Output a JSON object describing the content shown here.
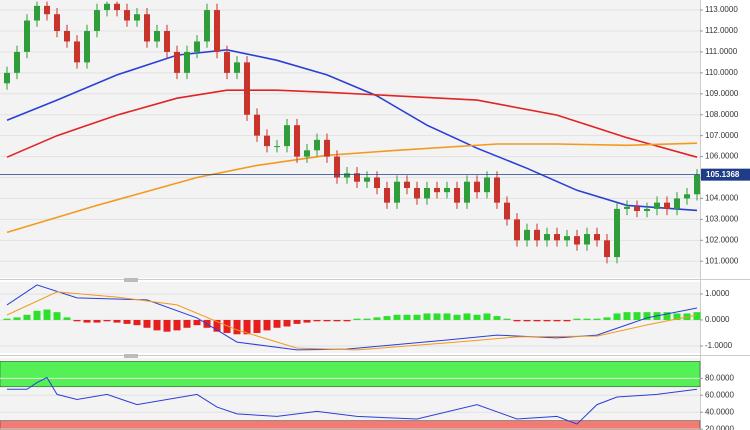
{
  "chart_data": [
    {
      "type": "candlestick",
      "open": [
        109.5,
        110.0,
        111.0,
        112.5,
        113.2,
        112.8,
        112.0,
        111.5,
        110.5,
        112.0,
        113.0,
        113.3,
        113.0,
        112.5,
        112.8,
        111.5,
        112.0,
        111.0,
        110.0,
        111.0,
        111.5,
        113.0,
        111.0,
        110.0,
        110.5,
        108.0,
        107.0,
        106.5,
        106.5,
        107.5,
        106.0,
        106.3,
        106.8,
        106.0,
        105.0,
        105.2,
        104.8,
        105.0,
        104.5,
        103.8,
        104.8,
        104.5,
        104.0,
        104.5,
        104.3,
        104.5,
        103.8,
        104.8,
        104.3,
        105.0,
        103.8,
        103.0,
        102.0,
        102.5,
        102.0,
        102.3,
        102.0,
        102.2,
        101.8,
        102.3,
        102.0,
        101.2,
        103.5,
        103.6,
        103.4,
        103.5,
        103.8,
        103.5,
        104.0,
        104.2
      ],
      "high": [
        110.3,
        111.3,
        112.8,
        113.4,
        113.4,
        113.1,
        112.3,
        111.8,
        112.3,
        113.3,
        113.4,
        113.4,
        113.3,
        113.1,
        113.1,
        112.3,
        112.3,
        111.3,
        111.3,
        111.8,
        113.3,
        113.3,
        111.3,
        110.8,
        110.8,
        108.3,
        107.3,
        106.8,
        107.8,
        107.8,
        106.6,
        107.1,
        107.1,
        106.3,
        105.5,
        105.5,
        105.3,
        105.3,
        104.8,
        105.1,
        105.1,
        104.8,
        104.8,
        104.8,
        104.8,
        104.8,
        105.1,
        105.1,
        105.3,
        105.3,
        104.1,
        103.3,
        102.8,
        102.8,
        102.6,
        102.6,
        102.5,
        102.5,
        102.6,
        102.6,
        102.3,
        103.8,
        103.9,
        103.9,
        103.8,
        104.1,
        104.1,
        104.3,
        104.5,
        105.4
      ],
      "low": [
        109.2,
        109.7,
        110.7,
        112.2,
        112.5,
        111.7,
        111.2,
        110.2,
        110.2,
        111.7,
        112.7,
        112.7,
        112.2,
        112.2,
        111.2,
        111.2,
        110.7,
        109.7,
        109.7,
        110.7,
        111.2,
        110.7,
        109.7,
        109.7,
        107.7,
        106.7,
        106.2,
        106.2,
        106.2,
        105.7,
        105.7,
        106.0,
        105.7,
        104.7,
        104.7,
        104.5,
        104.5,
        104.2,
        103.5,
        103.5,
        104.2,
        103.7,
        103.7,
        104.0,
        104.0,
        103.5,
        103.5,
        104.0,
        104.0,
        103.5,
        102.7,
        101.7,
        101.7,
        101.7,
        101.7,
        101.7,
        101.7,
        101.5,
        101.5,
        101.7,
        100.9,
        100.9,
        103.2,
        103.1,
        103.1,
        103.2,
        103.2,
        103.2,
        103.7,
        103.9
      ],
      "close": [
        110.0,
        111.0,
        112.5,
        113.2,
        112.8,
        112.0,
        111.5,
        110.5,
        112.0,
        113.0,
        113.3,
        113.0,
        112.5,
        112.8,
        111.5,
        112.0,
        111.0,
        110.0,
        111.0,
        111.5,
        113.0,
        111.0,
        110.0,
        110.5,
        108.0,
        107.0,
        106.5,
        106.5,
        107.5,
        106.0,
        106.3,
        106.8,
        106.0,
        105.0,
        105.2,
        104.8,
        105.0,
        104.5,
        103.8,
        104.8,
        104.5,
        104.0,
        104.5,
        104.3,
        104.5,
        103.8,
        104.8,
        104.3,
        105.0,
        103.8,
        103.0,
        102.0,
        102.5,
        102.0,
        102.3,
        102.0,
        102.2,
        101.8,
        102.3,
        102.0,
        101.2,
        103.5,
        103.6,
        103.4,
        103.5,
        103.8,
        103.5,
        104.0,
        104.2,
        105.1368
      ],
      "up_color": "#2f9e3a",
      "down_color": "#c8332b",
      "last_price": 105.1368,
      "last_price_color": "#1f3c88",
      "series": [
        {
          "color": "#2b3fd6",
          "x": [
            0,
            5,
            11,
            17,
            22,
            27,
            32,
            37,
            42,
            47,
            52,
            57,
            62,
            69
          ],
          "values": [
            107.74,
            108.7,
            109.9,
            110.85,
            111.1,
            110.6,
            109.9,
            108.9,
            107.5,
            106.4,
            105.44,
            104.39,
            103.67,
            103.43
          ]
        },
        {
          "color": "#e02424",
          "x": [
            0,
            5,
            11,
            17,
            22,
            27,
            32,
            39,
            47,
            55,
            62,
            69
          ],
          "values": [
            105.97,
            107.0,
            107.98,
            108.79,
            109.17,
            109.17,
            109.07,
            108.9,
            108.7,
            107.98,
            106.9,
            105.97
          ]
        },
        {
          "color": "#f39a1e",
          "x": [
            0,
            9,
            19,
            25,
            32,
            39,
            49,
            55,
            62,
            69
          ],
          "values": [
            102.38,
            103.67,
            105.0,
            105.58,
            106.06,
            106.3,
            106.6,
            106.6,
            106.54,
            106.64
          ]
        }
      ],
      "ylim": [
        100.2,
        113.48
      ],
      "yticks": [
        {
          "value": 101,
          "label": "101.0000"
        },
        {
          "value": 102,
          "label": "102.0000"
        },
        {
          "value": 103,
          "label": "103.0000"
        },
        {
          "value": 104,
          "label": "104.0000"
        },
        {
          "value": 105,
          "label": "105.0000"
        },
        {
          "value": 106,
          "label": "106.0000"
        },
        {
          "value": 107,
          "label": "107.0000"
        },
        {
          "value": 108,
          "label": "108.0000"
        },
        {
          "value": 109,
          "label": "109.0000"
        },
        {
          "value": 110,
          "label": "110.0000"
        },
        {
          "value": 111,
          "label": "111.0000"
        },
        {
          "value": 112,
          "label": "112.0000"
        },
        {
          "value": 113,
          "label": "113.0000"
        }
      ],
      "grid": true
    },
    {
      "type": "macd",
      "values": [
        0.05,
        0.1,
        0.2,
        0.35,
        0.4,
        0.3,
        0.1,
        -0.05,
        -0.1,
        -0.1,
        -0.05,
        -0.1,
        -0.15,
        -0.2,
        -0.3,
        -0.4,
        -0.45,
        -0.4,
        -0.3,
        -0.2,
        -0.3,
        -0.45,
        -0.5,
        -0.55,
        -0.55,
        -0.5,
        -0.4,
        -0.3,
        -0.25,
        -0.15,
        -0.1,
        -0.05,
        -0.05,
        -0.05,
        -0.05,
        0.05,
        0.05,
        0.1,
        0.15,
        0.2,
        0.2,
        0.2,
        0.25,
        0.25,
        0.25,
        0.2,
        0.25,
        0.2,
        0.25,
        0.15,
        0.05,
        -0.05,
        -0.05,
        -0.05,
        -0.05,
        -0.05,
        -0.05,
        0.05,
        0.05,
        0.05,
        0.1,
        0.25,
        0.3,
        0.3,
        0.3,
        0.3,
        0.3,
        0.25,
        0.25,
        0.3
      ],
      "pos_color": "#2ee02e",
      "neg_color": "#e61e1e",
      "series": [
        {
          "color": "#2b3fd6",
          "x": [
            0,
            3,
            7,
            14,
            19,
            23,
            29,
            34,
            44,
            49,
            55,
            59,
            64,
            69
          ],
          "values": [
            0.58,
            1.35,
            0.85,
            0.77,
            0.08,
            -0.85,
            -1.15,
            -1.12,
            -0.77,
            -0.58,
            -0.69,
            -0.58,
            0.08,
            0.46
          ]
        },
        {
          "color": "#f39a1e",
          "x": [
            0,
            5,
            11,
            17,
            23,
            29,
            35,
            44,
            51,
            59,
            64,
            69
          ],
          "values": [
            0.19,
            1.08,
            0.88,
            0.58,
            -0.38,
            -1.08,
            -1.15,
            -0.88,
            -0.65,
            -0.62,
            -0.19,
            0.19
          ]
        }
      ],
      "ylim": [
        -1.27,
        1.46
      ],
      "yticks": [
        {
          "value": 1,
          "label": "1.0000"
        },
        {
          "value": 0,
          "label": "0.0000"
        },
        {
          "value": -1,
          "label": "-1.0000"
        }
      ],
      "grid": true
    },
    {
      "type": "line",
      "bands": [
        {
          "from": 70,
          "to": 100,
          "color": "#55f055"
        },
        {
          "from": 0,
          "to": 30,
          "color": "#f27b73"
        }
      ],
      "series": [
        {
          "color": "#2b3fd6",
          "x": [
            0,
            2,
            3,
            4,
            5,
            7,
            10,
            13,
            16,
            19,
            21,
            23,
            27,
            31,
            35,
            41,
            47,
            51,
            55,
            57,
            59,
            61,
            65,
            69
          ],
          "values": [
            67,
            67,
            75,
            81,
            61,
            55,
            61,
            49,
            55,
            61,
            46,
            38,
            35,
            41,
            35,
            32,
            49,
            32,
            35,
            26,
            49,
            58,
            61,
            67
          ]
        }
      ],
      "ylim": [
        19,
        104
      ],
      "yticks": [
        {
          "value": 80,
          "label": "80.0000"
        },
        {
          "value": 60,
          "label": "60.0000"
        },
        {
          "value": 40,
          "label": "40.0000"
        },
        {
          "value": 20,
          "label": "20.0000"
        }
      ],
      "grid": true
    }
  ]
}
